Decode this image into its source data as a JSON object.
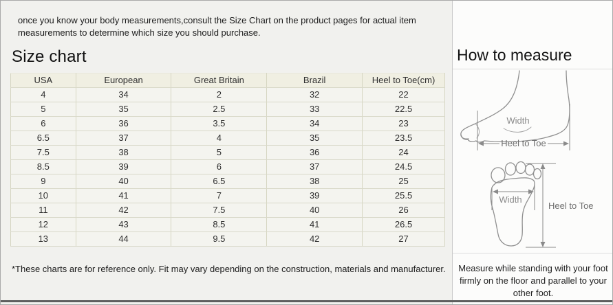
{
  "intro": "once you know your body measurements,consult the Size Chart on the product pages for actual item measurements to determine which size you should purchase.",
  "size_chart": {
    "title": "Size chart",
    "table": {
      "headers": [
        "USA",
        "European",
        "Great Britain",
        "Brazil",
        "Heel to Toe(cm)"
      ],
      "rows": [
        [
          "4",
          "34",
          "2",
          "32",
          "22"
        ],
        [
          "5",
          "35",
          "2.5",
          "33",
          "22.5"
        ],
        [
          "6",
          "36",
          "3.5",
          "34",
          "23"
        ],
        [
          "6.5",
          "37",
          "4",
          "35",
          "23.5"
        ],
        [
          "7.5",
          "38",
          "5",
          "36",
          "24"
        ],
        [
          "8.5",
          "39",
          "6",
          "37",
          "24.5"
        ],
        [
          "9",
          "40",
          "6.5",
          "38",
          "25"
        ],
        [
          "10",
          "41",
          "7",
          "39",
          "25.5"
        ],
        [
          "11",
          "42",
          "7.5",
          "40",
          "26"
        ],
        [
          "12",
          "43",
          "8.5",
          "41",
          "26.5"
        ],
        [
          "13",
          "44",
          "9.5",
          "42",
          "27"
        ]
      ]
    },
    "note": "*These charts are for reference only. Fit may vary depending on the construction, materials and manufacturer."
  },
  "how_to_measure": {
    "title": "How to measure",
    "side_view": {
      "width_label": "Width",
      "heel_to_toe_label": "Heel to Toe"
    },
    "top_view": {
      "width_label": "Width",
      "heel_to_toe_label": "Heel to Toe"
    },
    "note": "Measure while standing with your foot firmly on the floor and parallel to your other foot."
  },
  "colors": {
    "table_header_bg": "#f0efe2",
    "table_row_bg": "#f4f4ef",
    "table_border": "#d6d6c2",
    "left_panel_bg": "#f1f1ee",
    "right_panel_bg": "#fcfcfb",
    "diagram_line": "#8f8f8f"
  }
}
